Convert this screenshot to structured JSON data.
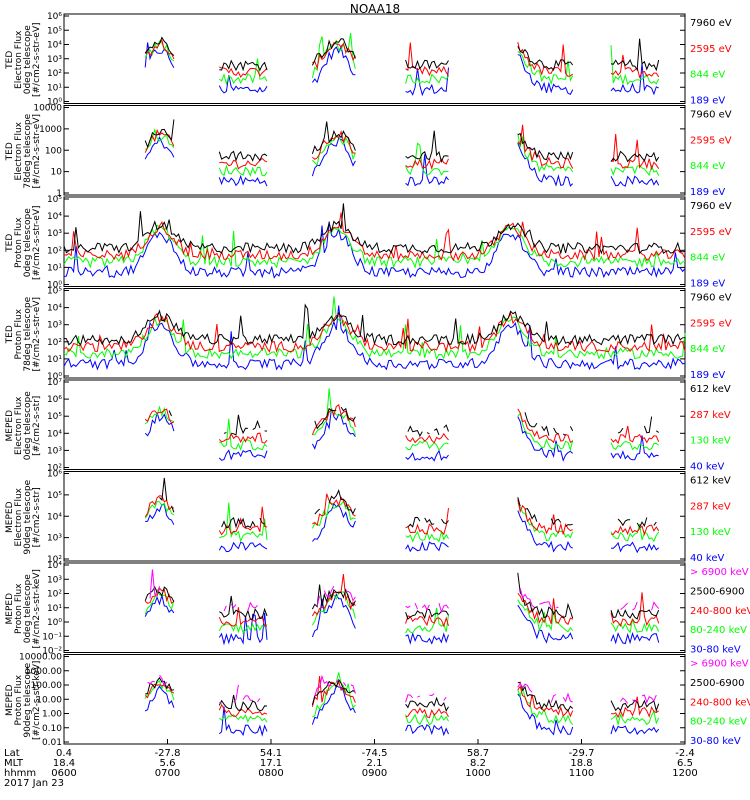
{
  "title": "NOAA18",
  "colors": {
    "black": "#000000",
    "red": "#ff0000",
    "green": "#00ff00",
    "blue": "#0000ff",
    "magenta": "#ff00ff"
  },
  "chart_data": [
    {
      "type": "line",
      "ylabel": [
        "TED",
        "Electron Flux",
        "0deg telescope",
        "[#/cm2-s-str-eV]"
      ],
      "ylim": [
        1,
        1000000
      ],
      "yscale": "log",
      "yticks": [
        "10⁰",
        "10¹",
        "10²",
        "10³",
        "10⁴",
        "10⁵",
        "10⁶"
      ],
      "legend": [
        {
          "label": "7960 eV",
          "color": "black"
        },
        {
          "label": "2595 eV",
          "color": "red"
        },
        {
          "label": "844 eV",
          "color": "green"
        },
        {
          "label": "189 eV",
          "color": "blue"
        }
      ]
    },
    {
      "type": "line",
      "ylabel": [
        "TED",
        "Electron Flux",
        "78deg telescope",
        "[#/cm2-s-str-eV]"
      ],
      "ylim": [
        1,
        10000
      ],
      "yscale": "log",
      "yticks": [
        "1",
        "10",
        "100",
        "1000",
        "10000"
      ],
      "legend": [
        {
          "label": "7960 eV",
          "color": "black"
        },
        {
          "label": "2595 eV",
          "color": "red"
        },
        {
          "label": "844 eV",
          "color": "green"
        },
        {
          "label": "189 eV",
          "color": "blue"
        }
      ]
    },
    {
      "type": "line",
      "ylabel": [
        "TED",
        "Proton Flux",
        "0deg telescope",
        "[#/cm2-s-str-eV]"
      ],
      "ylim": [
        1,
        100000
      ],
      "yscale": "log",
      "yticks": [
        "10⁰",
        "10¹",
        "10²",
        "10³",
        "10⁴",
        "10⁵"
      ],
      "legend": [
        {
          "label": "7960 eV",
          "color": "black"
        },
        {
          "label": "2595 eV",
          "color": "red"
        },
        {
          "label": "844 eV",
          "color": "green"
        },
        {
          "label": "189 eV",
          "color": "blue"
        }
      ]
    },
    {
      "type": "line",
      "ylabel": [
        "TED",
        "Proton Flux",
        "78deg telescope",
        "[#/cm2-s-str-eV]"
      ],
      "ylim": [
        1,
        100000
      ],
      "yscale": "log",
      "yticks": [
        "10⁰",
        "10¹",
        "10²",
        "10³",
        "10⁴",
        "10⁵"
      ],
      "legend": [
        {
          "label": "7960 eV",
          "color": "black"
        },
        {
          "label": "2595 eV",
          "color": "red"
        },
        {
          "label": "844 eV",
          "color": "green"
        },
        {
          "label": "189 eV",
          "color": "blue"
        }
      ]
    },
    {
      "type": "line",
      "ylabel": [
        "MEPED",
        "Electron Flux",
        "0deg telescope",
        "[#/cm2-s-str]"
      ],
      "ylim": [
        100,
        10000000
      ],
      "yscale": "log",
      "yticks": [
        "10²",
        "10³",
        "10⁴",
        "10⁵",
        "10⁶",
        "10⁷"
      ],
      "legend": [
        {
          "label": "612 keV",
          "color": "black"
        },
        {
          "label": "287 keV",
          "color": "red"
        },
        {
          "label": "130 keV",
          "color": "green"
        },
        {
          "label": "40 keV",
          "color": "blue"
        }
      ]
    },
    {
      "type": "line",
      "ylabel": [
        "MEPED",
        "Electron Flux",
        "90deg telescope",
        "[#/cm2-s-str]"
      ],
      "ylim": [
        100,
        1000000
      ],
      "yscale": "log",
      "yticks": [
        "10²",
        "10³",
        "10⁴",
        "10⁵",
        "10⁶"
      ],
      "legend": [
        {
          "label": "612 keV",
          "color": "black"
        },
        {
          "label": "287 keV",
          "color": "red"
        },
        {
          "label": "130 keV",
          "color": "green"
        },
        {
          "label": "40 keV",
          "color": "blue"
        }
      ]
    },
    {
      "type": "line",
      "ylabel": [
        "MEPED",
        "Proton Flux",
        "0deg telescope",
        "[#/cm2-s-str-keV]"
      ],
      "ylim": [
        0.01,
        10000
      ],
      "yscale": "log",
      "yticks": [
        "10⁻²",
        "10⁻¹",
        "10⁰",
        "10¹",
        "10²",
        "10³",
        "10⁴"
      ],
      "legend": [
        {
          "label": "> 6900 keV",
          "color": "magenta"
        },
        {
          "label": "2500-6900",
          "color": "black"
        },
        {
          "label": "240-800 keV",
          "color": "red"
        },
        {
          "label": "80-240 keV",
          "color": "green"
        },
        {
          "label": "30-80 keV",
          "color": "blue"
        }
      ]
    },
    {
      "type": "line",
      "ylabel": [
        "MEPED",
        "Proton Flux",
        "90deg telescope",
        "[#/cm2-s-str-keV]"
      ],
      "ylim": [
        0.01,
        10000
      ],
      "yscale": "log",
      "yticks": [
        "0.01",
        "0.10",
        "1.00",
        "10.00",
        "100.00",
        "1000.00",
        "10000.00"
      ],
      "legend": [
        {
          "label": "> 6900 keV",
          "color": "magenta"
        },
        {
          "label": "2500-6900",
          "color": "black"
        },
        {
          "label": "240-800 keV",
          "color": "red"
        },
        {
          "label": "80-240 keV",
          "color": "green"
        },
        {
          "label": "30-80 keV",
          "color": "blue"
        }
      ]
    }
  ],
  "x_axis": {
    "row_labels": [
      "Lat",
      "MLT",
      "hhmm",
      "2017 Jan 23"
    ],
    "ticks": [
      {
        "lat": "0.4",
        "mlt": "18.4",
        "hhmm": "0600"
      },
      {
        "lat": "-27.8",
        "mlt": "5.6",
        "hhmm": "0700"
      },
      {
        "lat": "54.1",
        "mlt": "17.1",
        "hhmm": "0800"
      },
      {
        "lat": "-74.5",
        "mlt": "2.1",
        "hhmm": "0900"
      },
      {
        "lat": "58.7",
        "mlt": "8.2",
        "hhmm": "1000"
      },
      {
        "lat": "-29.7",
        "mlt": "18.8",
        "hhmm": "1100"
      },
      {
        "lat": "-2.4",
        "mlt": "6.5",
        "hhmm": "1200"
      }
    ],
    "xlim": [
      "0600",
      "1200"
    ]
  }
}
